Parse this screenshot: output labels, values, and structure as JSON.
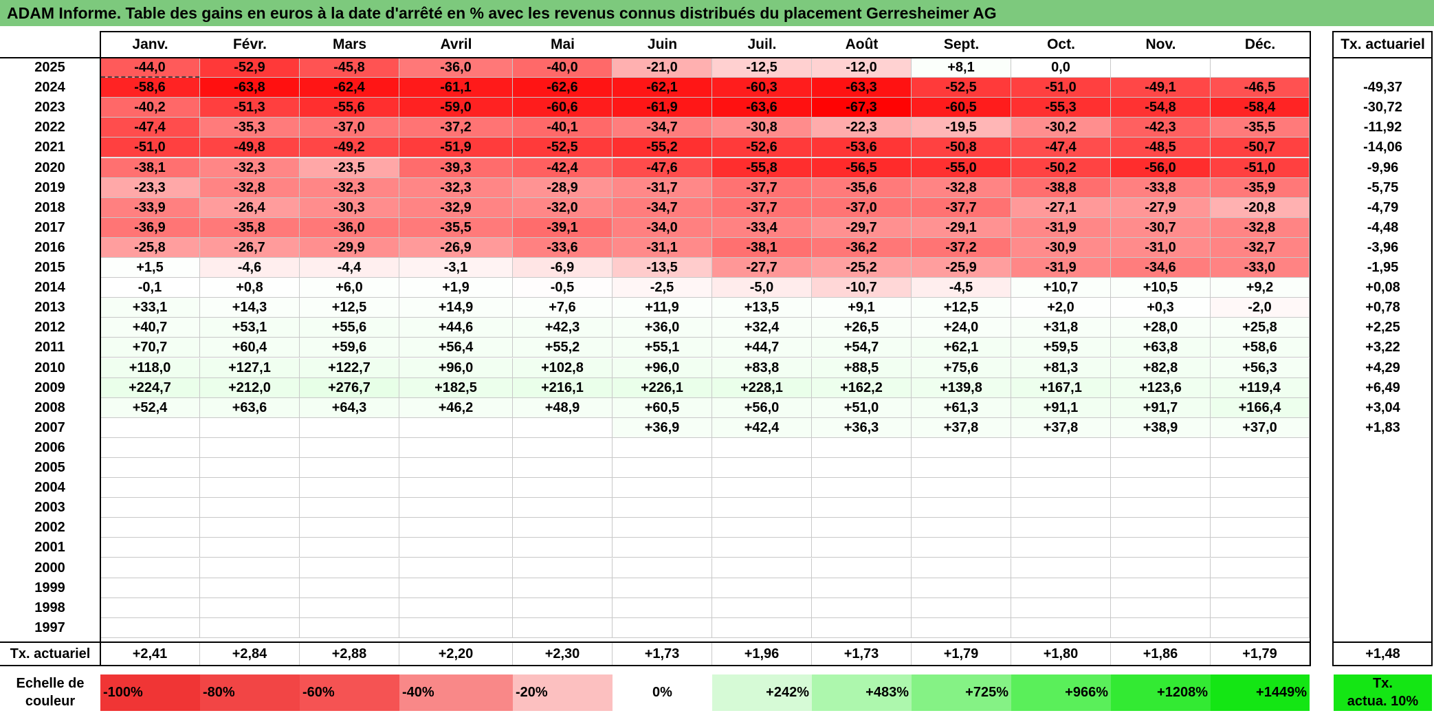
{
  "title": "ADAM Informe. Table des gains en euros à la date d'arrêté en % avec les revenus connus distribués du placement Gerresheimer AG",
  "months": [
    "Janv.",
    "Févr.",
    "Mars",
    "Avril",
    "Mai",
    "Juin",
    "Juil.",
    "Août",
    "Sept.",
    "Oct.",
    "Nov.",
    "Déc."
  ],
  "actuarial_header": "Tx. actuariel",
  "rows": [
    {
      "year": "2025",
      "values": [
        "-44,0",
        "-52,9",
        "-45,8",
        "-36,0",
        "-40,0",
        "-21,0",
        "-12,5",
        "-12,0",
        "+8,1",
        "0,0",
        "",
        ""
      ],
      "rate": ""
    },
    {
      "year": "2024",
      "values": [
        "-58,6",
        "-63,8",
        "-62,4",
        "-61,1",
        "-62,6",
        "-62,1",
        "-60,3",
        "-63,3",
        "-52,5",
        "-51,0",
        "-49,1",
        "-46,5"
      ],
      "rate": "-49,37"
    },
    {
      "year": "2023",
      "values": [
        "-40,2",
        "-51,3",
        "-55,6",
        "-59,0",
        "-60,6",
        "-61,9",
        "-63,6",
        "-67,3",
        "-60,5",
        "-55,3",
        "-54,8",
        "-58,4"
      ],
      "rate": "-30,72"
    },
    {
      "year": "2022",
      "values": [
        "-47,4",
        "-35,3",
        "-37,0",
        "-37,2",
        "-40,1",
        "-34,7",
        "-30,8",
        "-22,3",
        "-19,5",
        "-30,2",
        "-42,3",
        "-35,5"
      ],
      "rate": "-11,92"
    },
    {
      "year": "2021",
      "values": [
        "-51,0",
        "-49,8",
        "-49,2",
        "-51,9",
        "-52,5",
        "-55,2",
        "-52,6",
        "-53,6",
        "-50,8",
        "-47,4",
        "-48,5",
        "-50,7"
      ],
      "rate": "-14,06"
    },
    {
      "year": "2020",
      "values": [
        "-38,1",
        "-32,3",
        "-23,5",
        "-39,3",
        "-42,4",
        "-47,6",
        "-55,8",
        "-56,5",
        "-55,0",
        "-50,2",
        "-56,0",
        "-51,0"
      ],
      "rate": "-9,96"
    },
    {
      "year": "2019",
      "values": [
        "-23,3",
        "-32,8",
        "-32,3",
        "-32,3",
        "-28,9",
        "-31,7",
        "-37,7",
        "-35,6",
        "-32,8",
        "-38,8",
        "-33,8",
        "-35,9"
      ],
      "rate": "-5,75"
    },
    {
      "year": "2018",
      "values": [
        "-33,9",
        "-26,4",
        "-30,3",
        "-32,9",
        "-32,0",
        "-34,7",
        "-37,7",
        "-37,0",
        "-37,7",
        "-27,1",
        "-27,9",
        "-20,8"
      ],
      "rate": "-4,79"
    },
    {
      "year": "2017",
      "values": [
        "-36,9",
        "-35,8",
        "-36,0",
        "-35,5",
        "-39,1",
        "-34,0",
        "-33,4",
        "-29,7",
        "-29,1",
        "-31,9",
        "-30,7",
        "-32,8"
      ],
      "rate": "-4,48"
    },
    {
      "year": "2016",
      "values": [
        "-25,8",
        "-26,7",
        "-29,9",
        "-26,9",
        "-33,6",
        "-31,1",
        "-38,1",
        "-36,2",
        "-37,2",
        "-30,9",
        "-31,0",
        "-32,7"
      ],
      "rate": "-3,96"
    },
    {
      "year": "2015",
      "values": [
        "+1,5",
        "-4,6",
        "-4,4",
        "-3,1",
        "-6,9",
        "-13,5",
        "-27,7",
        "-25,2",
        "-25,9",
        "-31,9",
        "-34,6",
        "-33,0"
      ],
      "rate": "-1,95"
    },
    {
      "year": "2014",
      "values": [
        "-0,1",
        "+0,8",
        "+6,0",
        "+1,9",
        "-0,5",
        "-2,5",
        "-5,0",
        "-10,7",
        "-4,5",
        "+10,7",
        "+10,5",
        "+9,2"
      ],
      "rate": "+0,08"
    },
    {
      "year": "2013",
      "values": [
        "+33,1",
        "+14,3",
        "+12,5",
        "+14,9",
        "+7,6",
        "+11,9",
        "+13,5",
        "+9,1",
        "+12,5",
        "+2,0",
        "+0,3",
        "-2,0"
      ],
      "rate": "+0,78"
    },
    {
      "year": "2012",
      "values": [
        "+40,7",
        "+53,1",
        "+55,6",
        "+44,6",
        "+42,3",
        "+36,0",
        "+32,4",
        "+26,5",
        "+24,0",
        "+31,8",
        "+28,0",
        "+25,8"
      ],
      "rate": "+2,25"
    },
    {
      "year": "2011",
      "values": [
        "+70,7",
        "+60,4",
        "+59,6",
        "+56,4",
        "+55,2",
        "+55,1",
        "+44,7",
        "+54,7",
        "+62,1",
        "+59,5",
        "+63,8",
        "+58,6"
      ],
      "rate": "+3,22"
    },
    {
      "year": "2010",
      "values": [
        "+118,0",
        "+127,1",
        "+122,7",
        "+96,0",
        "+102,8",
        "+96,0",
        "+83,8",
        "+88,5",
        "+75,6",
        "+81,3",
        "+82,8",
        "+56,3"
      ],
      "rate": "+4,29"
    },
    {
      "year": "2009",
      "values": [
        "+224,7",
        "+212,0",
        "+276,7",
        "+182,5",
        "+216,1",
        "+226,1",
        "+228,1",
        "+162,2",
        "+139,8",
        "+167,1",
        "+123,6",
        "+119,4"
      ],
      "rate": "+6,49"
    },
    {
      "year": "2008",
      "values": [
        "+52,4",
        "+63,6",
        "+64,3",
        "+46,2",
        "+48,9",
        "+60,5",
        "+56,0",
        "+51,0",
        "+61,3",
        "+91,1",
        "+91,7",
        "+166,4"
      ],
      "rate": "+3,04"
    },
    {
      "year": "2007",
      "values": [
        "",
        "",
        "",
        "",
        "",
        "+36,9",
        "+42,4",
        "+36,3",
        "+37,8",
        "+37,8",
        "+38,9",
        "+37,0"
      ],
      "rate": "+1,83"
    },
    {
      "year": "2006",
      "values": [
        "",
        "",
        "",
        "",
        "",
        "",
        "",
        "",
        "",
        "",
        "",
        ""
      ],
      "rate": ""
    },
    {
      "year": "2005",
      "values": [
        "",
        "",
        "",
        "",
        "",
        "",
        "",
        "",
        "",
        "",
        "",
        ""
      ],
      "rate": ""
    },
    {
      "year": "2004",
      "values": [
        "",
        "",
        "",
        "",
        "",
        "",
        "",
        "",
        "",
        "",
        "",
        ""
      ],
      "rate": ""
    },
    {
      "year": "2003",
      "values": [
        "",
        "",
        "",
        "",
        "",
        "",
        "",
        "",
        "",
        "",
        "",
        ""
      ],
      "rate": ""
    },
    {
      "year": "2002",
      "values": [
        "",
        "",
        "",
        "",
        "",
        "",
        "",
        "",
        "",
        "",
        "",
        ""
      ],
      "rate": ""
    },
    {
      "year": "2001",
      "values": [
        "",
        "",
        "",
        "",
        "",
        "",
        "",
        "",
        "",
        "",
        "",
        ""
      ],
      "rate": ""
    },
    {
      "year": "2000",
      "values": [
        "",
        "",
        "",
        "",
        "",
        "",
        "",
        "",
        "",
        "",
        "",
        ""
      ],
      "rate": ""
    },
    {
      "year": "1999",
      "values": [
        "",
        "",
        "",
        "",
        "",
        "",
        "",
        "",
        "",
        "",
        "",
        ""
      ],
      "rate": ""
    },
    {
      "year": "1998",
      "values": [
        "",
        "",
        "",
        "",
        "",
        "",
        "",
        "",
        "",
        "",
        "",
        ""
      ],
      "rate": ""
    },
    {
      "year": "1997",
      "values": [
        "",
        "",
        "",
        "",
        "",
        "",
        "",
        "",
        "",
        "",
        "",
        ""
      ],
      "rate": ""
    }
  ],
  "footer": {
    "label": "Tx. actuariel",
    "values": [
      "+2,41",
      "+2,84",
      "+2,88",
      "+2,20",
      "+2,30",
      "+1,73",
      "+1,96",
      "+1,73",
      "+1,79",
      "+1,80",
      "+1,86",
      "+1,79"
    ],
    "total": "+1,48"
  },
  "legend": {
    "label_line1": "Echelle de",
    "label_line2": "couleur",
    "items": [
      {
        "text": "-100%",
        "color": "#f03535",
        "align": "left"
      },
      {
        "text": "-80%",
        "color": "#f24545",
        "align": "left"
      },
      {
        "text": "-60%",
        "color": "#f55353",
        "align": "left"
      },
      {
        "text": "-40%",
        "color": "#f98888",
        "align": "left"
      },
      {
        "text": "-20%",
        "color": "#fcc0c0",
        "align": "left"
      },
      {
        "text": "0%",
        "color": "#ffffff",
        "align": "center"
      },
      {
        "text": "+242%",
        "color": "#d6fad6",
        "align": "right"
      },
      {
        "text": "+483%",
        "color": "#adf7ad",
        "align": "right"
      },
      {
        "text": "+725%",
        "color": "#85f285",
        "align": "right"
      },
      {
        "text": "+966%",
        "color": "#5aef5a",
        "align": "right"
      },
      {
        "text": "+1208%",
        "color": "#33ea33",
        "align": "right"
      },
      {
        "text": "+1449%",
        "color": "#14e614",
        "align": "right"
      }
    ],
    "badge_line1": "Tx.",
    "badge_line2": "actua. 10%",
    "badge_color": "#14e614"
  }
}
